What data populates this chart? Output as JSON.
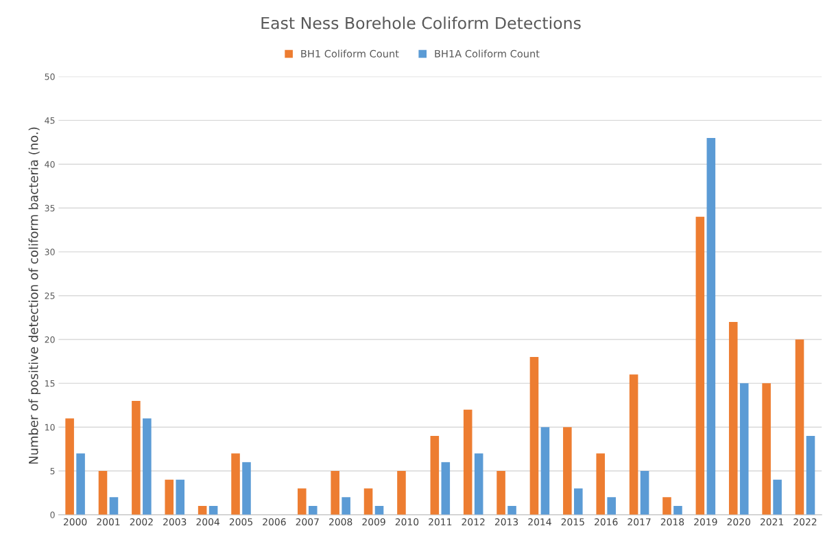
{
  "chart_data": {
    "type": "bar",
    "title": "East Ness Borehole Coliform Detections",
    "ylabel": "Number of positive detection of coliform bacteria (no.)",
    "categories": [
      "2000",
      "2001",
      "2002",
      "2003",
      "2004",
      "2005",
      "2006",
      "2007",
      "2008",
      "2009",
      "2010",
      "2011",
      "2012",
      "2013",
      "2014",
      "2015",
      "2016",
      "2017",
      "2018",
      "2019",
      "2020",
      "2021",
      "2022"
    ],
    "series": [
      {
        "name": "BH1 Coliform Count",
        "color": "#ed7d31",
        "values": [
          11,
          5,
          13,
          4,
          1,
          7,
          0,
          3,
          5,
          3,
          5,
          9,
          12,
          5,
          18,
          10,
          7,
          16,
          2,
          34,
          22,
          15,
          20
        ]
      },
      {
        "name": "BH1A Coliform Count",
        "color": "#5b9bd5",
        "values": [
          7,
          2,
          11,
          4,
          1,
          6,
          0,
          1,
          2,
          1,
          0,
          6,
          7,
          1,
          10,
          3,
          2,
          5,
          1,
          43,
          15,
          4,
          9
        ]
      }
    ],
    "ylim": [
      0,
      50
    ],
    "yticks": [
      0,
      5,
      10,
      15,
      20,
      25,
      30,
      35,
      40,
      45,
      50
    ],
    "grid": "y",
    "legend": "top"
  }
}
